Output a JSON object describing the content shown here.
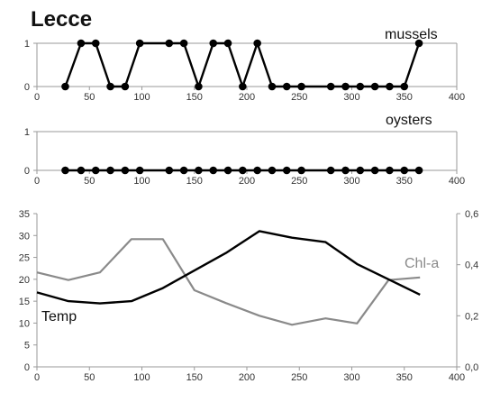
{
  "title": "Lecce",
  "colors": {
    "black_series": "#000000",
    "gray_series": "#8a8a8a",
    "axis": "#9a9a9a",
    "grid": "#d4d4d4"
  },
  "chart_data": [
    {
      "type": "line",
      "series": [
        {
          "name": "mussels",
          "x": [
            27,
            42,
            56,
            70,
            84,
            98,
            126,
            140,
            154,
            168,
            182,
            196,
            210,
            224,
            238,
            252,
            280,
            294,
            308,
            322,
            336,
            350,
            364
          ],
          "y": [
            0,
            1,
            1,
            0,
            0,
            1,
            1,
            1,
            0,
            1,
            1,
            0,
            1,
            0,
            0,
            0,
            0,
            0,
            0,
            0,
            0,
            0,
            1
          ]
        }
      ],
      "xlim": [
        0,
        400
      ],
      "xticks": [
        0,
        50,
        100,
        150,
        200,
        250,
        300,
        350,
        400
      ],
      "ylim": [
        0,
        1
      ],
      "yticks": [
        0,
        1
      ]
    },
    {
      "type": "line",
      "series": [
        {
          "name": "oysters",
          "x": [
            27,
            42,
            56,
            70,
            84,
            98,
            126,
            140,
            154,
            168,
            182,
            196,
            210,
            224,
            238,
            252,
            280,
            294,
            308,
            322,
            336,
            350,
            364
          ],
          "y": [
            0,
            0,
            0,
            0,
            0,
            0,
            0,
            0,
            0,
            0,
            0,
            0,
            0,
            0,
            0,
            0,
            0,
            0,
            0,
            0,
            0,
            0,
            0
          ]
        }
      ],
      "xlim": [
        0,
        400
      ],
      "xticks": [
        0,
        50,
        100,
        150,
        200,
        250,
        300,
        350,
        400
      ],
      "ylim": [
        0,
        1
      ],
      "yticks": [
        0,
        1
      ]
    },
    {
      "type": "line",
      "series": [
        {
          "name": "Temp",
          "axis": "left",
          "x": [
            0,
            30,
            60,
            90,
            120,
            150,
            180,
            212,
            243,
            275,
            305,
            335,
            365
          ],
          "y": [
            17,
            15,
            14.5,
            15,
            18,
            22,
            26,
            31,
            29.5,
            28.5,
            23.5,
            20,
            16.5
          ]
        },
        {
          "name": "Chl-a",
          "axis": "right",
          "x": [
            0,
            30,
            60,
            90,
            120,
            150,
            180,
            212,
            243,
            275,
            305,
            335,
            365
          ],
          "y": [
            0.37,
            0.34,
            0.37,
            0.5,
            0.5,
            0.3,
            0.25,
            0.2,
            0.165,
            0.19,
            0.17,
            0.34,
            0.35
          ]
        }
      ],
      "xlim": [
        0,
        400
      ],
      "xticks": [
        0,
        50,
        100,
        150,
        200,
        250,
        300,
        350,
        400
      ],
      "ylim_left": [
        0,
        35
      ],
      "yticks_left": [
        0,
        5,
        10,
        15,
        20,
        25,
        30,
        35
      ],
      "ylim_right": [
        0,
        0.6
      ],
      "yticks_right": [
        "0,0",
        "0,2",
        "0,4",
        "0,6"
      ],
      "grid": false
    }
  ]
}
